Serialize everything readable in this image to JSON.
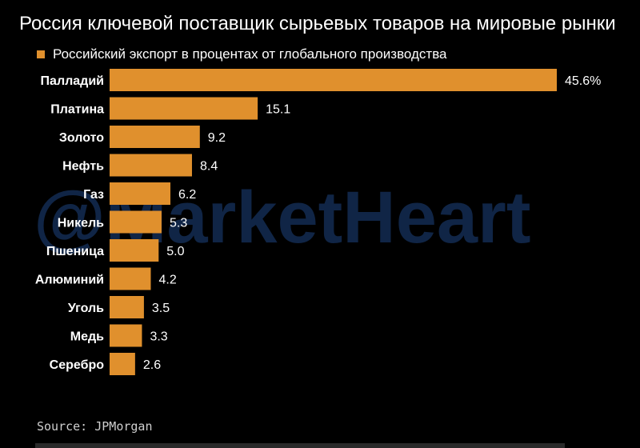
{
  "chart_data": {
    "type": "bar",
    "orientation": "horizontal",
    "title": "Россия ключевой поставщик сырьевых товаров на мировые рынки",
    "legend": {
      "label": "Российский экспорт в процентах от глобального производства",
      "placement": "top-left"
    },
    "categories": [
      "Палладий",
      "Платина",
      "Золото",
      "Нефть",
      "Газ",
      "Никель",
      "Пшеница",
      "Алюминий",
      "Уголь",
      "Медь",
      "Серебро"
    ],
    "values": [
      45.6,
      15.1,
      9.2,
      8.4,
      6.2,
      5.3,
      5.0,
      4.2,
      3.5,
      3.3,
      2.6
    ],
    "value_labels": [
      "45.6%",
      "15.1",
      "9.2",
      "8.4",
      "6.2",
      "5.3",
      "5.0",
      "4.2",
      "3.5",
      "3.3",
      "2.6"
    ],
    "xlim": [
      0,
      45.6
    ],
    "grid": false,
    "bar_color": "#e0902d"
  },
  "watermark": "@MarketHeart",
  "source": "Source: JPMorgan",
  "colors": {
    "background": "#000000",
    "bar": "#e0902d",
    "text": "#ffffff",
    "watermark": "#14305a"
  }
}
